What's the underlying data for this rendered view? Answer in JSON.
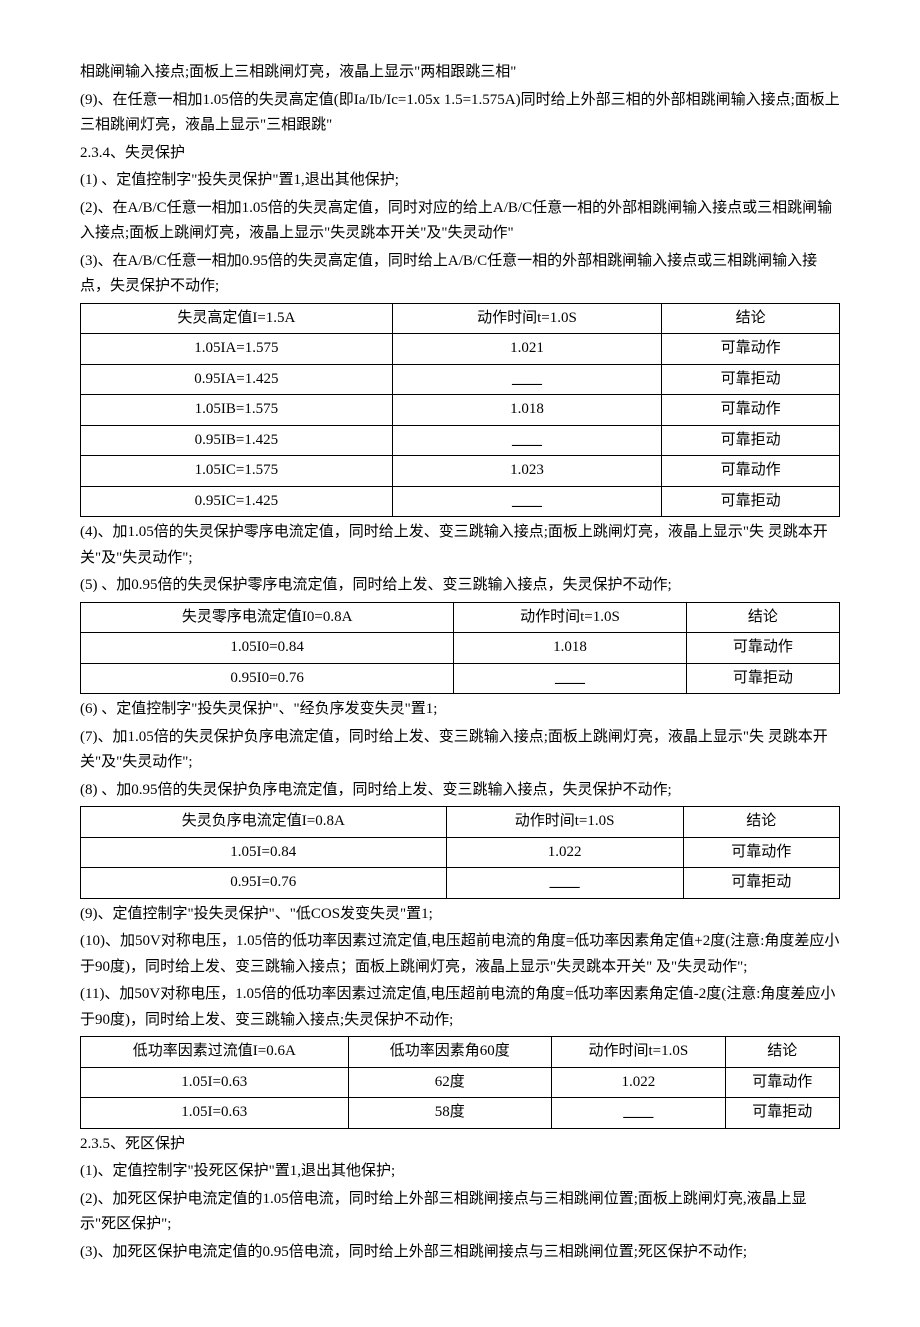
{
  "intro": {
    "p1": "相跳闸输入接点;面板上三相跳闸灯亮，液晶上显示\"两相跟跳三相\"",
    "p2": "(9)、在任意一相加1.05倍的失灵高定值(即Ia/Ib/Ic=1.05x 1.5=1.575A)同时给上外部三相的外部相跳闸输入接点;面板上三相跳闸灯亮，液晶上显示\"三相跟跳\"",
    "p3": "2.3.4、失灵保护",
    "p4": "(1) 、定值控制字\"投失灵保护\"置1,退出其他保护;",
    "p5": "(2)、在A/B/C任意一相加1.05倍的失灵高定值，同时对应的给上A/B/C任意一相的外部相跳闸输入接点或三相跳闸输入接点;面板上跳闸灯亮，液晶上显示\"失灵跳本开关\"及\"失灵动作\"",
    "p6": "(3)、在A/B/C任意一相加0.95倍的失灵高定值，同时给上A/B/C任意一相的外部相跳闸输入接点或三相跳闸输入接点，失灵保护不动作;"
  },
  "table1": {
    "h1": "失灵高定值I=1.5A",
    "h2": "动作时间t=1.0S",
    "h3": "结论",
    "rows": [
      {
        "c1": "1.05IA=1.575",
        "c2": "1.021",
        "c3": "可靠动作"
      },
      {
        "c1": "0.95IA=1.425",
        "c2": "",
        "c3": "可靠拒动"
      },
      {
        "c1": "1.05IB=1.575",
        "c2": "1.018",
        "c3": "可靠动作"
      },
      {
        "c1": "0.95IB=1.425",
        "c2": "",
        "c3": "可靠拒动"
      },
      {
        "c1": "1.05IC=1.575",
        "c2": "1.023",
        "c3": "可靠动作"
      },
      {
        "c1": "0.95IC=1.425",
        "c2": "",
        "c3": "可靠拒动"
      }
    ]
  },
  "mid1": {
    "p1": "(4)、加1.05倍的失灵保护零序电流定值，同时给上发、变三跳输入接点;面板上跳闸灯亮，液晶上显示\"失 灵跳本开关\"及\"失灵动作\";",
    "p2": "(5)  、加0.95倍的失灵保护零序电流定值，同时给上发、变三跳输入接点，失灵保护不动作;"
  },
  "table2": {
    "h1": "失灵零序电流定值I0=0.8A",
    "h2": "动作时间t=1.0S",
    "h3": "结论",
    "rows": [
      {
        "c1": "1.05I0=0.84",
        "c2": "1.018",
        "c3": "可靠动作"
      },
      {
        "c1": "0.95I0=0.76",
        "c2": "",
        "c3": "可靠拒动"
      }
    ]
  },
  "mid2": {
    "p1": "(6)  、定值控制字\"投失灵保护\"、\"经负序发变失灵\"置1;",
    "p2": "(7)、加1.05倍的失灵保护负序电流定值，同时给上发、变三跳输入接点;面板上跳闸灯亮，液晶上显示\"失 灵跳本开关\"及\"失灵动作\";",
    "p3": "(8)  、加0.95倍的失灵保护负序电流定值，同时给上发、变三跳输入接点，失灵保护不动作;"
  },
  "table3": {
    "h1": "失灵负序电流定值I=0.8A",
    "h2": "动作时间t=1.0S",
    "h3": "结论",
    "rows": [
      {
        "c1": "1.05I=0.84",
        "c2": "1.022",
        "c3": "可靠动作"
      },
      {
        "c1": "0.95I=0.76",
        "c2": "",
        "c3": "可靠拒动"
      }
    ]
  },
  "mid3": {
    "p1": "(9)、定值控制字\"投失灵保护\"、\"低COS发变失灵\"置1;",
    "p2": "(10)、加50V对称电压，1.05倍的低功率因素过流定值,电压超前电流的角度=低功率因素角定值+2度(注意:角度差应小于90度)，同时给上发、变三跳输入接点；面板上跳闸灯亮，液晶上显示\"失灵跳本开关\"  及\"失灵动作\";",
    "p3": "(11)、加50V对称电压，1.05倍的低功率因素过流定值,电压超前电流的角度=低功率因素角定值-2度(注意:角度差应小于90度)，同时给上发、变三跳输入接点;失灵保护不动作;"
  },
  "table4": {
    "h1": "低功率因素过流值I=0.6A",
    "h2": "低功率因素角60度",
    "h3": "动作时间t=1.0S",
    "h4": "结论",
    "rows": [
      {
        "c1": "1.05I=0.63",
        "c2": "62度",
        "c3": "1.022",
        "c4": "可靠动作"
      },
      {
        "c1": "1.05I=0.63",
        "c2": "58度",
        "c3": "",
        "c4": "可靠拒动"
      }
    ]
  },
  "end": {
    "p1": "2.3.5、死区保护",
    "p2": "(1)、定值控制字\"投死区保护\"置1,退出其他保护;",
    "p3": "(2)、加死区保护电流定值的1.05倍电流，同时给上外部三相跳闸接点与三相跳闸位置;面板上跳闸灯亮,液晶上显示\"死区保护\";",
    "p4": "(3)、加死区保护电流定值的0.95倍电流，同时给上外部三相跳闸接点与三相跳闸位置;死区保护不动作;"
  }
}
